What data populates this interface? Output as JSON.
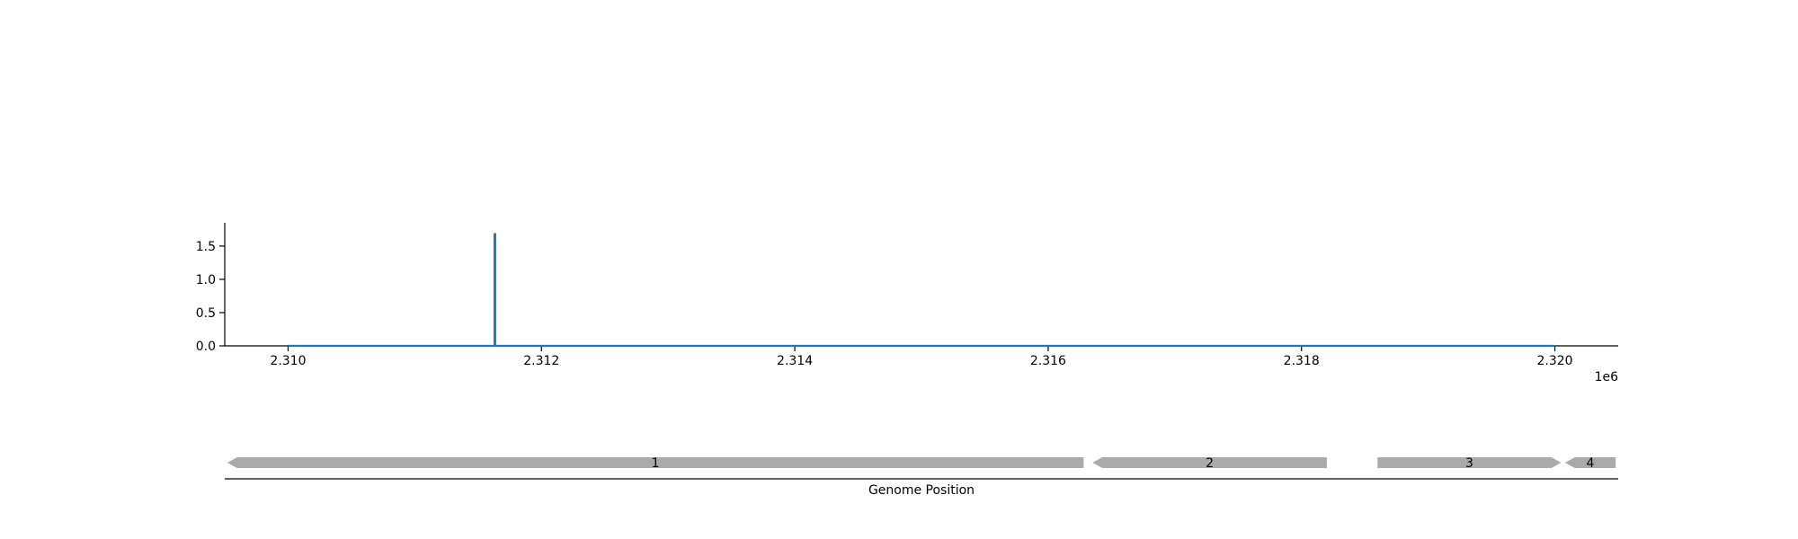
{
  "chart_data": [
    {
      "type": "line",
      "title": "",
      "xlabel": "",
      "ylabel": "",
      "x_offset_label": "1e6",
      "xlim": [
        2309500,
        2320500
      ],
      "ylim": [
        0.0,
        1.85
      ],
      "xticks": [
        2310000,
        2312000,
        2314000,
        2316000,
        2318000,
        2320000
      ],
      "xtick_labels": [
        "2.310",
        "2.312",
        "2.314",
        "2.316",
        "2.318",
        "2.320"
      ],
      "yticks": [
        0.0,
        0.5,
        1.0,
        1.5
      ],
      "ytick_labels": [
        "0.0",
        "0.5",
        "1.0",
        "1.5"
      ],
      "grid": false,
      "color": "#1f77b4",
      "series": [
        {
          "x": [
            2310000,
            2311630,
            2311630,
            2311635,
            2311635,
            2320000
          ],
          "y": [
            0,
            0,
            1.68,
            1.68,
            0,
            0
          ]
        }
      ]
    },
    {
      "type": "gene_track",
      "xlabel": "Genome Position",
      "color": "#aaaaaa",
      "genes": [
        {
          "label": "1",
          "start": 2309520,
          "end": 2316280,
          "strand": "-"
        },
        {
          "label": "2",
          "start": 2316350,
          "end": 2318200,
          "strand": "-"
        },
        {
          "label": "3",
          "start": 2318600,
          "end": 2320050,
          "strand": "+"
        },
        {
          "label": "4",
          "start": 2320080,
          "end": 2320480,
          "strand": "-"
        }
      ]
    }
  ]
}
